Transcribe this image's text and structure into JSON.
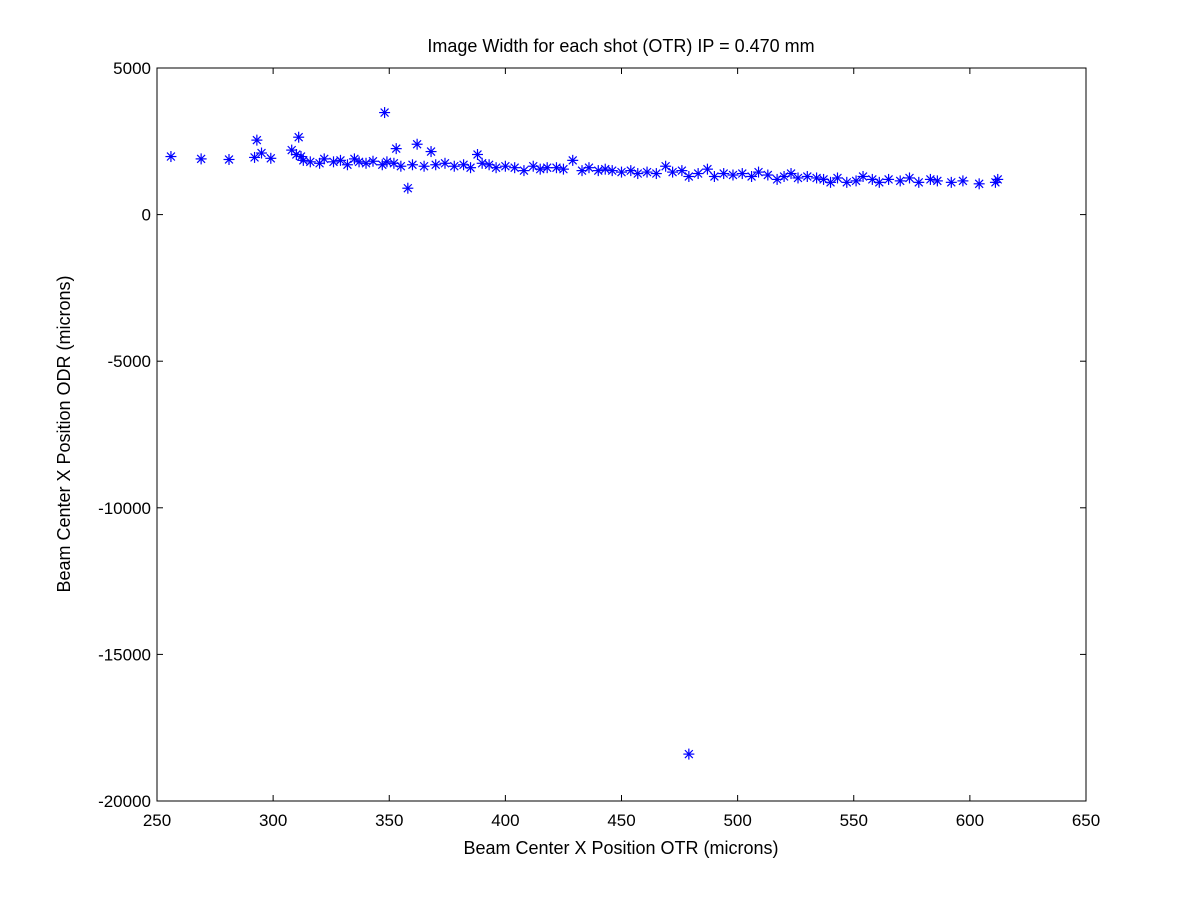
{
  "chart_data": {
    "type": "scatter",
    "title": "Image Width for each shot (OTR) IP = 0.470 mm",
    "xlabel": "Beam Center X Position OTR (microns)",
    "ylabel": "Beam Center X Position ODR (microns)",
    "xlim": [
      250,
      650
    ],
    "ylim": [
      -20000,
      5000
    ],
    "xticks": [
      250,
      300,
      350,
      400,
      450,
      500,
      550,
      600,
      650
    ],
    "yticks": [
      -20000,
      -15000,
      -10000,
      -5000,
      0,
      5000
    ],
    "xtick_labels": [
      "250",
      "300",
      "350",
      "400",
      "450",
      "500",
      "550",
      "600",
      "650"
    ],
    "ytick_labels": [
      "-20000",
      "-15000",
      "-10000",
      "-5000",
      "0",
      "5000"
    ],
    "grid": false,
    "marker": "asterisk",
    "marker_color": "#0000ff",
    "series": [
      {
        "x": [
          256,
          269,
          281,
          292,
          293,
          295,
          299,
          308,
          310,
          311,
          312,
          313,
          316,
          320,
          322,
          326,
          329,
          332,
          335,
          337,
          340,
          343,
          347,
          348,
          349,
          352,
          353,
          355,
          358,
          360,
          362,
          365,
          368,
          370,
          374,
          378,
          382,
          385,
          388,
          390,
          393,
          396,
          400,
          404,
          408,
          412,
          415,
          418,
          422,
          425,
          429,
          433,
          436,
          440,
          443,
          446,
          450,
          454,
          457,
          461,
          465,
          469,
          472,
          476,
          479,
          483,
          487,
          490,
          494,
          498,
          502,
          506,
          509,
          513,
          517,
          520,
          523,
          526,
          530,
          534,
          537,
          540,
          543,
          547,
          551,
          554,
          558,
          561,
          565,
          570,
          574,
          578,
          583,
          586,
          592,
          597,
          604,
          611,
          612,
          479
        ],
        "y": [
          1980,
          1900,
          1880,
          1950,
          2540,
          2100,
          1920,
          2200,
          2050,
          2640,
          1980,
          1850,
          1800,
          1750,
          1900,
          1800,
          1850,
          1700,
          1900,
          1800,
          1750,
          1820,
          1700,
          3480,
          1800,
          1750,
          2250,
          1650,
          900,
          1700,
          2400,
          1650,
          2150,
          1700,
          1750,
          1650,
          1700,
          1600,
          2050,
          1750,
          1700,
          1600,
          1650,
          1600,
          1500,
          1650,
          1550,
          1600,
          1600,
          1550,
          1850,
          1500,
          1600,
          1500,
          1550,
          1500,
          1450,
          1500,
          1400,
          1450,
          1400,
          1650,
          1450,
          1500,
          1300,
          1400,
          1550,
          1300,
          1400,
          1350,
          1400,
          1300,
          1450,
          1350,
          1200,
          1300,
          1400,
          1250,
          1300,
          1250,
          1200,
          1100,
          1250,
          1100,
          1150,
          1300,
          1200,
          1100,
          1200,
          1150,
          1250,
          1100,
          1200,
          1150,
          1100,
          1150,
          1050,
          1100,
          1200,
          -18400
        ]
      }
    ]
  }
}
